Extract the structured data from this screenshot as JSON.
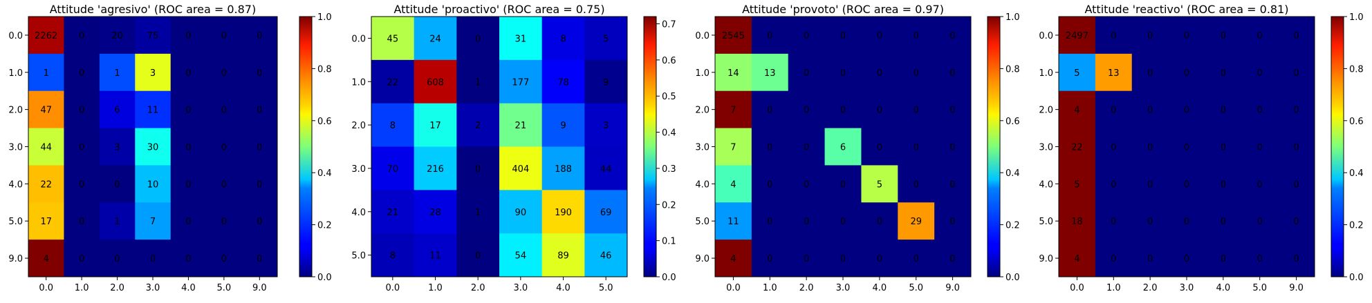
{
  "chart_data": [
    {
      "type": "heatmap",
      "title": "Attitude 'agresivo' (ROC area = 0.87)",
      "x_ticks": [
        "0.0",
        "1.0",
        "2.0",
        "3.0",
        "4.0",
        "5.0",
        "9.0"
      ],
      "y_ticks": [
        "0.0",
        "1.0",
        "2.0",
        "3.0",
        "4.0",
        "5.0",
        "9.0"
      ],
      "values": [
        [
          2262,
          0,
          20,
          75,
          0,
          0,
          0
        ],
        [
          1,
          0,
          1,
          3,
          0,
          0,
          0
        ],
        [
          47,
          0,
          6,
          11,
          0,
          0,
          0
        ],
        [
          44,
          0,
          3,
          30,
          0,
          0,
          0
        ],
        [
          22,
          0,
          0,
          10,
          0,
          0,
          0
        ],
        [
          17,
          0,
          1,
          7,
          0,
          0,
          0
        ],
        [
          4,
          0,
          0,
          0,
          0,
          0,
          0
        ]
      ],
      "colormap": "jet",
      "colorbar_range": [
        0.0,
        1.0
      ],
      "colorbar_ticks": [
        "0.0",
        "0.2",
        "0.4",
        "0.6",
        "0.8",
        "1.0"
      ]
    },
    {
      "type": "heatmap",
      "title": "Attitude 'proactivo' (ROC area = 0.75)",
      "x_ticks": [
        "0.0",
        "1.0",
        "2.0",
        "3.0",
        "4.0",
        "5.0"
      ],
      "y_ticks": [
        "0.0",
        "1.0",
        "2.0",
        "3.0",
        "4.0",
        "5.0"
      ],
      "values": [
        [
          45,
          24,
          0,
          31,
          8,
          5
        ],
        [
          22,
          608,
          1,
          177,
          78,
          9
        ],
        [
          8,
          17,
          2,
          21,
          9,
          3
        ],
        [
          70,
          216,
          0,
          404,
          188,
          44
        ],
        [
          21,
          28,
          1,
          90,
          190,
          69
        ],
        [
          8,
          11,
          0,
          54,
          89,
          46
        ]
      ],
      "colormap": "jet",
      "colorbar_range": [
        0.0,
        0.72
      ],
      "colorbar_ticks": [
        "0.0",
        "0.1",
        "0.2",
        "0.3",
        "0.4",
        "0.5",
        "0.6",
        "0.7"
      ]
    },
    {
      "type": "heatmap",
      "title": "Attitude 'provoto' (ROC area = 0.97)",
      "x_ticks": [
        "0.0",
        "1.0",
        "2.0",
        "3.0",
        "4.0",
        "5.0",
        "9.0"
      ],
      "y_ticks": [
        "0.0",
        "1.0",
        "2.0",
        "3.0",
        "4.0",
        "5.0",
        "9.0"
      ],
      "values": [
        [
          2545,
          0,
          0,
          0,
          0,
          0,
          0
        ],
        [
          14,
          13,
          0,
          0,
          0,
          0,
          0
        ],
        [
          7,
          0,
          0,
          0,
          0,
          0,
          0
        ],
        [
          7,
          0,
          0,
          6,
          0,
          0,
          0
        ],
        [
          4,
          0,
          0,
          0,
          5,
          0,
          0
        ],
        [
          11,
          0,
          0,
          0,
          0,
          29,
          0
        ],
        [
          4,
          0,
          0,
          0,
          0,
          0,
          0
        ]
      ],
      "colormap": "jet",
      "colorbar_range": [
        0.0,
        1.0
      ],
      "colorbar_ticks": [
        "0.0",
        "0.2",
        "0.4",
        "0.6",
        "0.8",
        "1.0"
      ]
    },
    {
      "type": "heatmap",
      "title": "Attitude 'reactivo' (ROC area = 0.81)",
      "x_ticks": [
        "0.0",
        "1.0",
        "2.0",
        "3.0",
        "4.0",
        "5.0",
        "9.0"
      ],
      "y_ticks": [
        "0.0",
        "1.0",
        "2.0",
        "3.0",
        "4.0",
        "5.0",
        "9.0"
      ],
      "values": [
        [
          2497,
          0,
          0,
          0,
          0,
          0,
          0
        ],
        [
          5,
          13,
          0,
          0,
          0,
          0,
          0
        ],
        [
          4,
          0,
          0,
          0,
          0,
          0,
          0
        ],
        [
          22,
          0,
          0,
          0,
          0,
          0,
          0
        ],
        [
          5,
          0,
          0,
          0,
          0,
          0,
          0
        ],
        [
          18,
          0,
          0,
          0,
          0,
          0,
          0
        ],
        [
          4,
          0,
          0,
          0,
          0,
          0,
          0
        ]
      ],
      "colormap": "jet",
      "colorbar_range": [
        0.0,
        1.0
      ],
      "colorbar_ticks": [
        "0.0",
        "0.2",
        "0.4",
        "0.6",
        "0.8",
        "1.0"
      ]
    }
  ]
}
